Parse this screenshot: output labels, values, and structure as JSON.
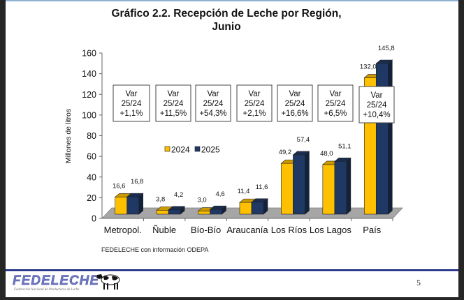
{
  "chart_data": {
    "type": "bar",
    "title": "Gráfico 2.2. Recepción de Leche por Región,",
    "title_line2": "Junio",
    "xlabel": "",
    "ylabel": "Millones de litros",
    "ylim": [
      0,
      160
    ],
    "yticks": [
      "0",
      "20",
      "40",
      "60",
      "80",
      "100",
      "120",
      "140",
      "160"
    ],
    "ytick_values": [
      0,
      20,
      40,
      60,
      80,
      100,
      120,
      140,
      160
    ],
    "categories": [
      "Metropol.",
      "Ñuble",
      "Bío-Bío",
      "Araucanía",
      "Los Ríos",
      "Los Lagos",
      "País"
    ],
    "series": [
      {
        "name": "2024",
        "color": "#ffc000",
        "values": [
          16.6,
          3.8,
          3.0,
          11.4,
          49.2,
          48.0,
          132.0
        ],
        "labels": [
          "16,6",
          "3,8",
          "3,0",
          "11,4",
          "49,2",
          "48,0",
          "132,0"
        ]
      },
      {
        "name": "2025",
        "color": "#1f3864",
        "values": [
          16.8,
          4.2,
          4.6,
          11.6,
          57.4,
          51.1,
          145.8
        ],
        "labels": [
          "16,8",
          "4,2",
          "4,6",
          "11,6",
          "57,4",
          "51,1",
          "145,8"
        ]
      }
    ],
    "annotations": [
      {
        "category": "Metropol.",
        "lines": [
          "Var",
          "25/24",
          "+1,1%"
        ]
      },
      {
        "category": "Ñuble",
        "lines": [
          "Var",
          "25/24",
          "+11,5%"
        ]
      },
      {
        "category": "Bío-Bío",
        "lines": [
          "Var",
          "25/24",
          "+54,3%"
        ]
      },
      {
        "category": "Araucanía",
        "lines": [
          "Var",
          "25/24",
          "+2,1%"
        ]
      },
      {
        "category": "Los Ríos",
        "lines": [
          "Var",
          "25/24",
          "+16,6%"
        ]
      },
      {
        "category": "Los Lagos",
        "lines": [
          "Var",
          "25/24",
          "+6,5%"
        ]
      },
      {
        "category": "País",
        "lines": [
          "Var",
          "25/24",
          "+10,4%"
        ]
      }
    ],
    "legend": {
      "placement": "center-left",
      "entries": [
        "2024",
        "2025"
      ]
    },
    "grid": false,
    "style": "3d-clustered-column"
  },
  "source": "FEDELECHE con información ODEPA",
  "footer": {
    "logo_text": "FEDELECHE",
    "logo_subtitle": "Federación Nacional de Productores de Leche",
    "page_number": "5"
  }
}
